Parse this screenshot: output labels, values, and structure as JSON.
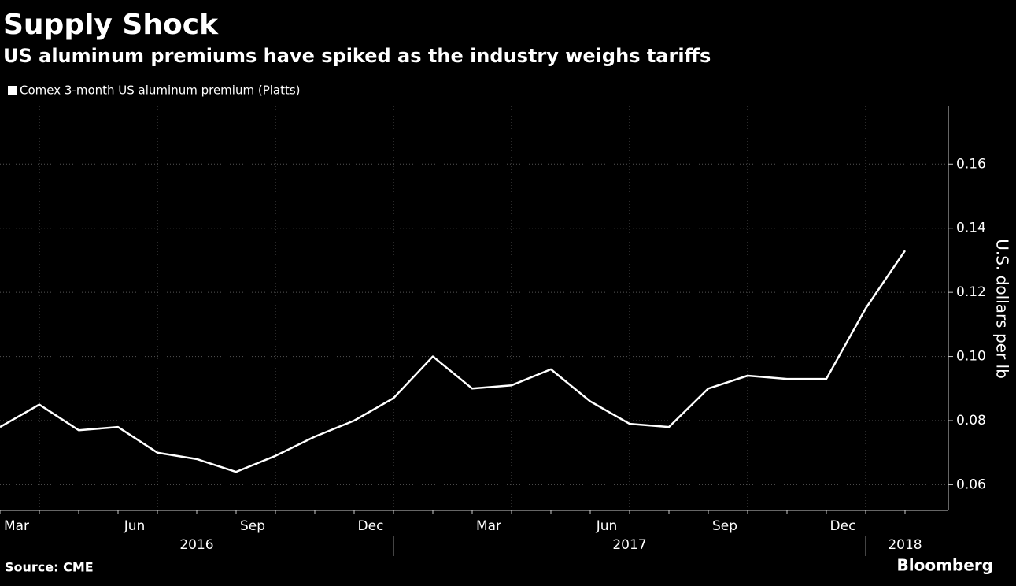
{
  "chart_data": {
    "type": "line",
    "title": "Supply Shock",
    "subtitle": "US aluminum premiums have spiked as the industry weighs tariffs",
    "source": "Source: CME",
    "brand": "Bloomberg",
    "y_axis_label": "U.S. dollars per lb",
    "x": [
      "2016-03",
      "2016-04",
      "2016-05",
      "2016-06",
      "2016-07",
      "2016-08",
      "2016-09",
      "2016-10",
      "2016-11",
      "2016-12",
      "2017-01",
      "2017-02",
      "2017-03",
      "2017-04",
      "2017-05",
      "2017-06",
      "2017-07",
      "2017-08",
      "2017-09",
      "2017-10",
      "2017-11",
      "2017-12",
      "2018-01",
      "2018-02"
    ],
    "series": [
      {
        "name": "Comex 3-month US aluminum premium (Platts)",
        "color": "#ffffff",
        "values": [
          0.078,
          0.085,
          0.077,
          0.078,
          0.07,
          0.068,
          0.064,
          0.069,
          0.075,
          0.08,
          0.087,
          0.1,
          0.09,
          0.091,
          0.096,
          0.086,
          0.079,
          0.078,
          0.09,
          0.094,
          0.093,
          0.093,
          0.115,
          0.133
        ]
      }
    ],
    "xticks": [
      {
        "value": "2016-03",
        "label": "Mar"
      },
      {
        "value": "2016-06",
        "label": "Jun"
      },
      {
        "value": "2016-09",
        "label": "Sep"
      },
      {
        "value": "2016-12",
        "label": "Dec"
      },
      {
        "value": "2017-03",
        "label": "Mar"
      },
      {
        "value": "2017-06",
        "label": "Jun"
      },
      {
        "value": "2017-09",
        "label": "Sep"
      },
      {
        "value": "2017-12",
        "label": "Dec"
      }
    ],
    "years": [
      "2016",
      "2017",
      "2018"
    ],
    "ylim": [
      0.052,
      0.178
    ],
    "yticks": [
      0.06,
      0.08,
      {
        "value": 0.1,
        "label": "0.10"
      },
      0.12,
      0.14,
      0.16
    ],
    "grid": true
  }
}
